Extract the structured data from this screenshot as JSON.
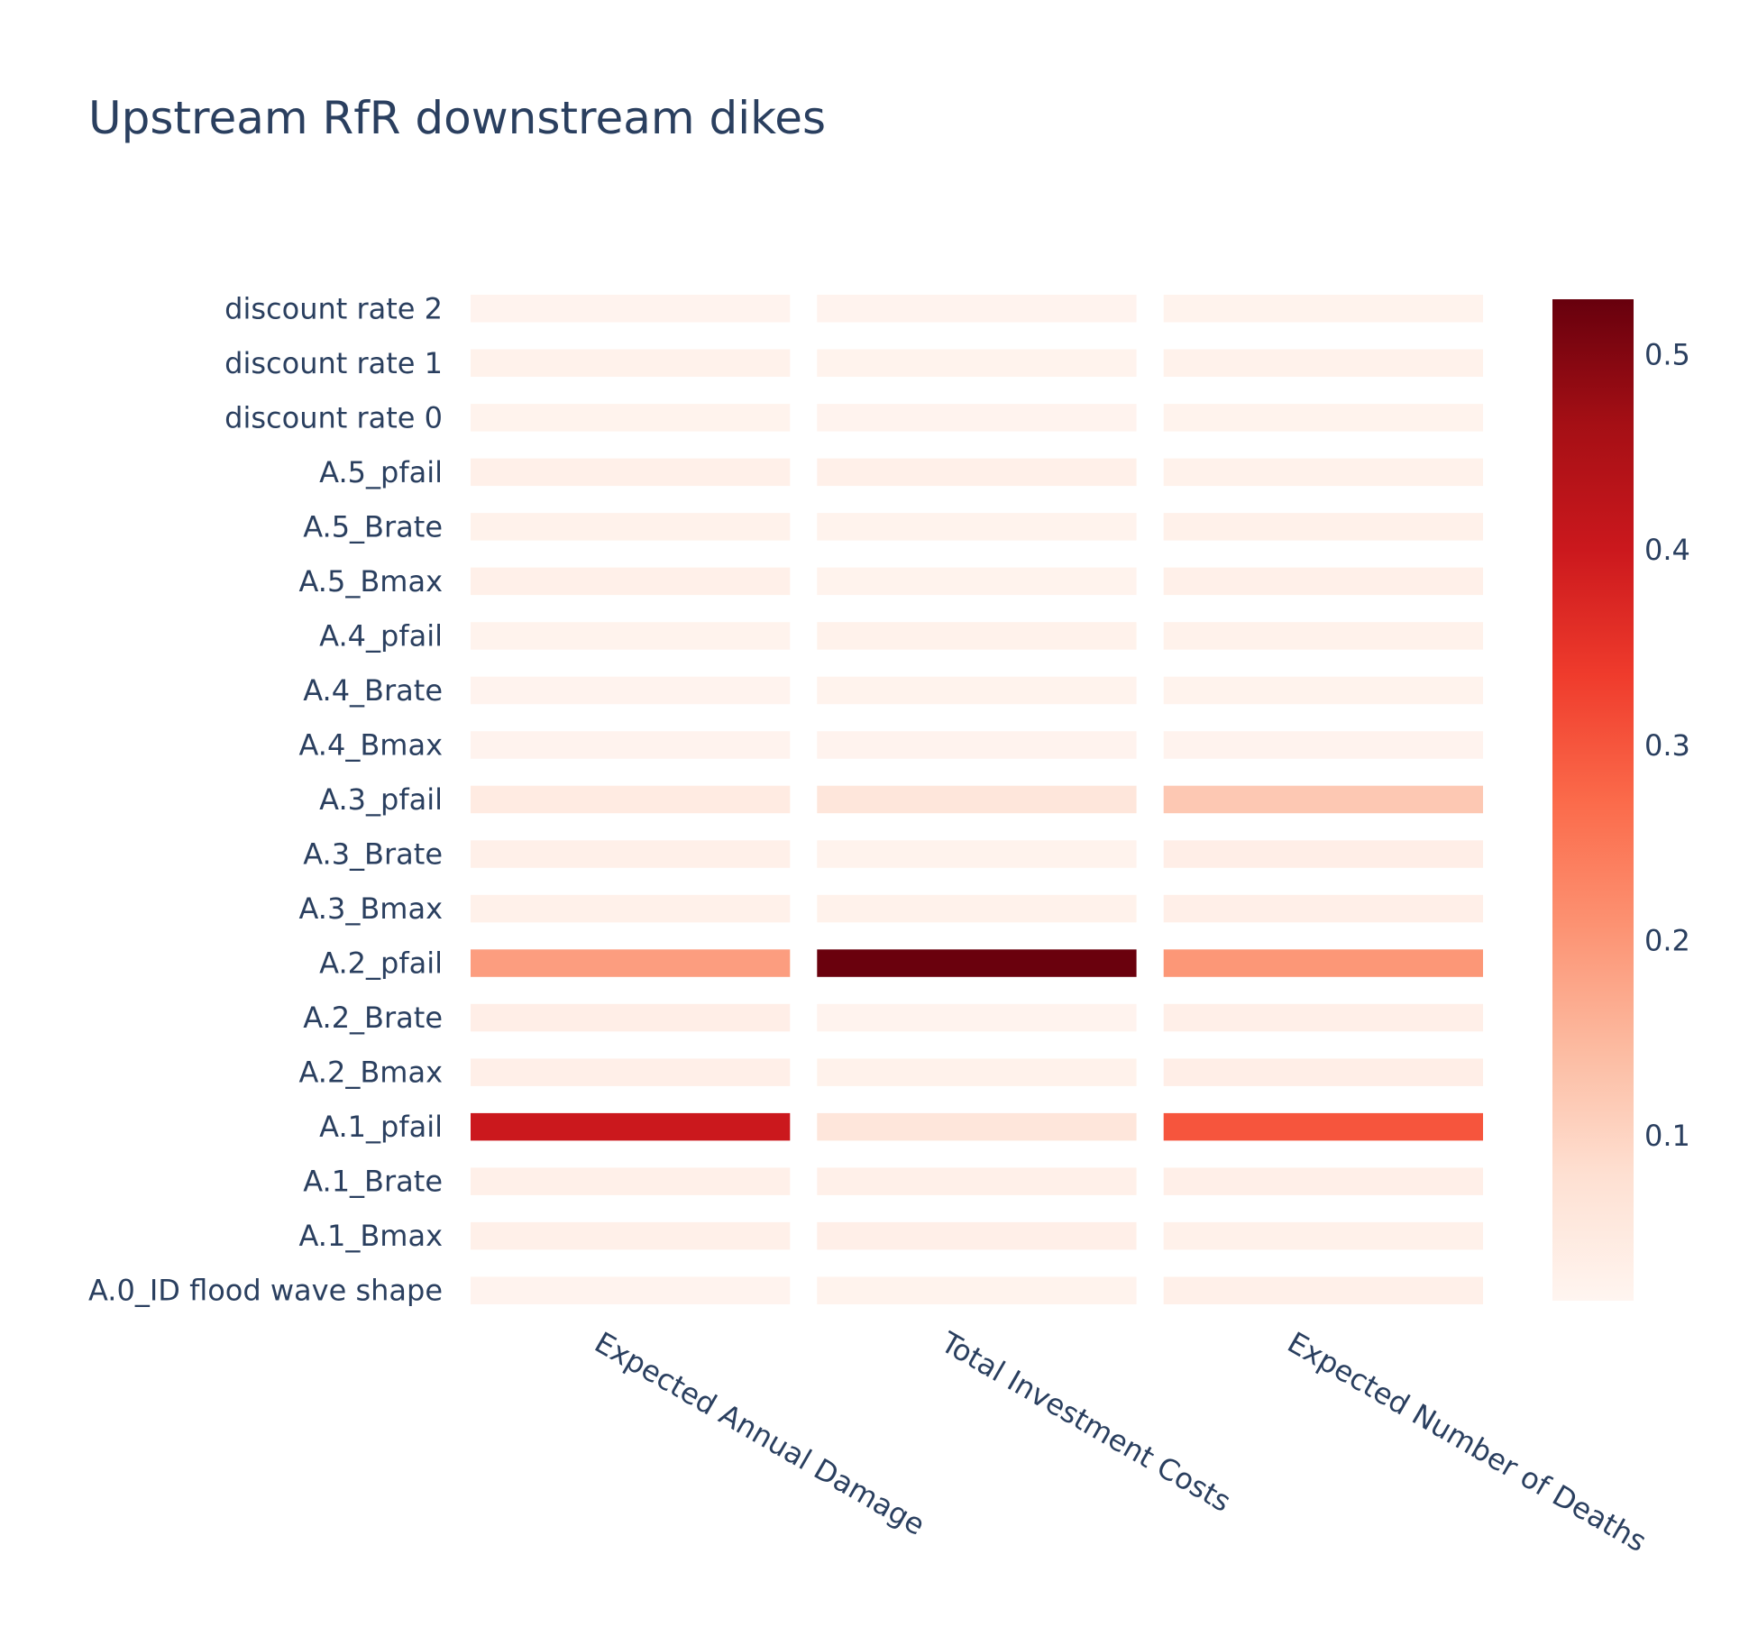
{
  "chart_data": {
    "type": "heatmap",
    "title": "Upstream RfR downstream dikes",
    "x": [
      "Expected Annual Damage",
      "Total Investment Costs",
      "Expected Number of Deaths"
    ],
    "y": [
      "A.0_ID flood wave shape",
      "A.1_Bmax",
      "A.1_Brate",
      "A.1_pfail",
      "A.2_Bmax",
      "A.2_Brate",
      "A.2_pfail",
      "A.3_Bmax",
      "A.3_Brate",
      "A.3_pfail",
      "A.4_Bmax",
      "A.4_Brate",
      "A.4_pfail",
      "A.5_Bmax",
      "A.5_Brate",
      "A.5_pfail",
      "discount rate 0",
      "discount rate 1",
      "discount rate 2"
    ],
    "z": [
      [
        0.02,
        0.022,
        0.03
      ],
      [
        0.03,
        0.032,
        0.028
      ],
      [
        0.03,
        0.03,
        0.032
      ],
      [
        0.4,
        0.06,
        0.3
      ],
      [
        0.032,
        0.025,
        0.035
      ],
      [
        0.035,
        0.02,
        0.032
      ],
      [
        0.19,
        0.525,
        0.2
      ],
      [
        0.028,
        0.025,
        0.032
      ],
      [
        0.03,
        0.022,
        0.035
      ],
      [
        0.045,
        0.06,
        0.12
      ],
      [
        0.02,
        0.02,
        0.02
      ],
      [
        0.02,
        0.022,
        0.022
      ],
      [
        0.022,
        0.025,
        0.025
      ],
      [
        0.03,
        0.022,
        0.03
      ],
      [
        0.025,
        0.022,
        0.028
      ],
      [
        0.03,
        0.03,
        0.025
      ],
      [
        0.022,
        0.02,
        0.022
      ],
      [
        0.025,
        0.022,
        0.025
      ],
      [
        0.02,
        0.02,
        0.022
      ]
    ],
    "zmin": 0.015,
    "zmax": 0.528,
    "colorscale": "Reds",
    "colorbar_ticks": [
      0.1,
      0.2,
      0.3,
      0.4,
      0.5
    ],
    "colorbar_tick_labels": [
      "0.1",
      "0.2",
      "0.3",
      "0.4",
      "0.5"
    ],
    "xlabel": "",
    "ylabel": "",
    "grid": false,
    "legend": "colorbar-right"
  }
}
